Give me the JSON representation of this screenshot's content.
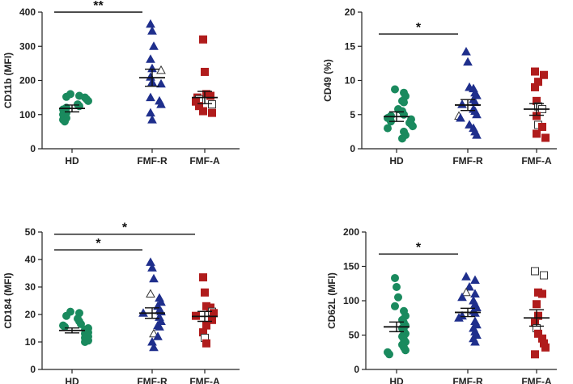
{
  "colors": {
    "HD": "#1a8a5e",
    "FMF-R": "#1f2f8c",
    "FMF-A": "#b01c1c",
    "axis": "#222222"
  },
  "chart_data": [
    {
      "id": "cd11b",
      "type": "scatter",
      "ylabel": "CD11b (MFI)",
      "ylim": [
        0,
        400
      ],
      "yticks": [
        "0",
        "100",
        "200",
        "300",
        "400"
      ],
      "categories": [
        "HD",
        "FMF-R",
        "FMF-A"
      ],
      "markers": {
        "HD": "circle",
        "FMF-R": "triangle",
        "FMF-A": "square"
      },
      "groups": [
        {
          "name": "HD",
          "points": [
            {
              "y": 160
            },
            {
              "y": 155
            },
            {
              "y": 152
            },
            {
              "y": 150
            },
            {
              "y": 145
            },
            {
              "y": 140
            },
            {
              "y": 130
            },
            {
              "y": 125
            },
            {
              "y": 120
            },
            {
              "y": 115
            },
            {
              "y": 110
            },
            {
              "y": 105
            },
            {
              "y": 100
            },
            {
              "y": 95
            },
            {
              "y": 90
            },
            {
              "y": 85
            },
            {
              "y": 80
            }
          ],
          "mean": 118,
          "sem_low": 108,
          "sem_high": 128
        },
        {
          "name": "FMF-R",
          "points": [
            {
              "y": 365
            },
            {
              "y": 345
            },
            {
              "y": 300
            },
            {
              "y": 262
            },
            {
              "y": 235
            },
            {
              "y": 230,
              "open": true
            },
            {
              "y": 210
            },
            {
              "y": 195
            },
            {
              "y": 190
            },
            {
              "y": 150
            },
            {
              "y": 140
            },
            {
              "y": 130
            },
            {
              "y": 105
            },
            {
              "y": 85
            }
          ],
          "mean": 208,
          "sem_low": 183,
          "sem_high": 233
        },
        {
          "name": "FMF-A",
          "points": [
            {
              "y": 320
            },
            {
              "y": 225
            },
            {
              "y": 160
            },
            {
              "y": 155
            },
            {
              "y": 150
            },
            {
              "y": 145,
              "open": true
            },
            {
              "y": 138
            },
            {
              "y": 130,
              "open": true
            },
            {
              "y": 125
            },
            {
              "y": 110
            },
            {
              "y": 105
            }
          ],
          "mean": 150,
          "sem_low": 132,
          "sem_high": 168
        }
      ],
      "significance": [
        {
          "from": "HD",
          "to": "FMF-R",
          "label": "**",
          "y": 400
        }
      ]
    },
    {
      "id": "cd49",
      "type": "scatter",
      "ylabel": "CD49 (%)",
      "ylim": [
        0,
        20
      ],
      "yticks": [
        "0",
        "5",
        "10",
        "15",
        "20"
      ],
      "categories": [
        "HD",
        "FMF-R",
        "FMF-A"
      ],
      "markers": {
        "HD": "circle",
        "FMF-R": "triangle",
        "FMF-A": "square"
      },
      "groups": [
        {
          "name": "HD",
          "points": [
            {
              "y": 8.7
            },
            {
              "y": 8.2
            },
            {
              "y": 7.7
            },
            {
              "y": 7.0
            },
            {
              "y": 6.8
            },
            {
              "y": 5.8
            },
            {
              "y": 5.5
            },
            {
              "y": 5.0
            },
            {
              "y": 4.8
            },
            {
              "y": 4.5
            },
            {
              "y": 4.3
            },
            {
              "y": 4.0
            },
            {
              "y": 3.8
            },
            {
              "y": 3.6
            },
            {
              "y": 3.3
            },
            {
              "y": 3.0
            },
            {
              "y": 2.5
            },
            {
              "y": 2.0
            },
            {
              "y": 1.5
            }
          ],
          "mean": 4.7,
          "sem_low": 4.0,
          "sem_high": 5.4
        },
        {
          "name": "FMF-R",
          "points": [
            {
              "y": 14.2
            },
            {
              "y": 12.7
            },
            {
              "y": 9.0
            },
            {
              "y": 8.8
            },
            {
              "y": 8.2
            },
            {
              "y": 7.8
            },
            {
              "y": 7.2
            },
            {
              "y": 6.8
            },
            {
              "y": 6.5
            },
            {
              "y": 5.8
            },
            {
              "y": 5.5
            },
            {
              "y": 5.0
            },
            {
              "y": 4.8,
              "open": true
            },
            {
              "y": 4.5
            },
            {
              "y": 3.5
            },
            {
              "y": 3.0
            },
            {
              "y": 2.5
            },
            {
              "y": 2.0
            }
          ],
          "mean": 6.4,
          "sem_low": 5.6,
          "sem_high": 7.2
        },
        {
          "name": "FMF-A",
          "points": [
            {
              "y": 11.3
            },
            {
              "y": 10.8
            },
            {
              "y": 9.8
            },
            {
              "y": 9.0
            },
            {
              "y": 7.0
            },
            {
              "y": 6.2,
              "open": true
            },
            {
              "y": 5.8,
              "open": true
            },
            {
              "y": 4.8
            },
            {
              "y": 3.5,
              "open": true
            },
            {
              "y": 3.2
            },
            {
              "y": 2.2
            },
            {
              "y": 1.6
            }
          ],
          "mean": 5.8,
          "sem_low": 4.9,
          "sem_high": 6.6
        }
      ],
      "significance": [
        {
          "from": "HD",
          "to": "FMF-R",
          "label": "*",
          "y": 16.8
        }
      ]
    },
    {
      "id": "cd184",
      "type": "scatter",
      "ylabel": "CD184 (MFI)",
      "ylim": [
        0,
        50
      ],
      "yticks": [
        "0",
        "10",
        "20",
        "30",
        "40",
        "50"
      ],
      "categories": [
        "HD",
        "FMF-R",
        "FMF-A"
      ],
      "markers": {
        "HD": "circle",
        "FMF-R": "triangle",
        "FMF-A": "square"
      },
      "groups": [
        {
          "name": "HD",
          "points": [
            {
              "y": 21.0
            },
            {
              "y": 20.5
            },
            {
              "y": 19.5
            },
            {
              "y": 18.5
            },
            {
              "y": 17.5
            },
            {
              "y": 16.5
            },
            {
              "y": 16.0
            },
            {
              "y": 15.5
            },
            {
              "y": 15.0
            },
            {
              "y": 14.5
            },
            {
              "y": 14.0
            },
            {
              "y": 13.5
            },
            {
              "y": 13.0
            },
            {
              "y": 12.5
            },
            {
              "y": 12.0
            },
            {
              "y": 11.5
            },
            {
              "y": 11.0
            },
            {
              "y": 10.5
            },
            {
              "y": 10.0
            }
          ],
          "mean": 14.2,
          "sem_low": 13.3,
          "sem_high": 15.1
        },
        {
          "name": "FMF-R",
          "points": [
            {
              "y": 39.0
            },
            {
              "y": 37.0
            },
            {
              "y": 33.0
            },
            {
              "y": 27.5,
              "open": true
            },
            {
              "y": 26.0
            },
            {
              "y": 24.5
            },
            {
              "y": 23.0
            },
            {
              "y": 21.5
            },
            {
              "y": 21.0
            },
            {
              "y": 20.5
            },
            {
              "y": 19.0
            },
            {
              "y": 17.5
            },
            {
              "y": 16.0
            },
            {
              "y": 15.5
            },
            {
              "y": 13.0,
              "open": true
            },
            {
              "y": 12.0
            },
            {
              "y": 10.0
            },
            {
              "y": 8.0
            }
          ],
          "mean": 20.5,
          "sem_low": 18.6,
          "sem_high": 22.4
        },
        {
          "name": "FMF-A",
          "points": [
            {
              "y": 33.5
            },
            {
              "y": 28.0
            },
            {
              "y": 23.0
            },
            {
              "y": 22.5
            },
            {
              "y": 21.0,
              "open": true
            },
            {
              "y": 20.5
            },
            {
              "y": 19.5
            },
            {
              "y": 18.0
            },
            {
              "y": 16.0
            },
            {
              "y": 13.5
            },
            {
              "y": 11.5,
              "open": true
            },
            {
              "y": 9.5
            }
          ],
          "mean": 19.3,
          "sem_low": 17.5,
          "sem_high": 21.1
        }
      ],
      "significance": [
        {
          "from": "HD",
          "to": "FMF-R",
          "label": "*",
          "y": 43.5
        },
        {
          "from": "HD",
          "to": "FMF-A",
          "label": "*",
          "y": 49.2
        }
      ]
    },
    {
      "id": "cd62l",
      "type": "scatter",
      "ylabel": "CD62L (MFI)",
      "ylim": [
        0,
        200
      ],
      "yticks": [
        "0",
        "50",
        "100",
        "150",
        "200"
      ],
      "categories": [
        "HD",
        "FMF-R",
        "FMF-A"
      ],
      "markers": {
        "HD": "circle",
        "FMF-R": "triangle",
        "FMF-A": "square"
      },
      "groups": [
        {
          "name": "HD",
          "points": [
            {
              "y": 133
            },
            {
              "y": 120
            },
            {
              "y": 105
            },
            {
              "y": 92
            },
            {
              "y": 85
            },
            {
              "y": 78
            },
            {
              "y": 72
            },
            {
              "y": 68
            },
            {
              "y": 64
            },
            {
              "y": 60
            },
            {
              "y": 56
            },
            {
              "y": 52
            },
            {
              "y": 48
            },
            {
              "y": 44
            },
            {
              "y": 40
            },
            {
              "y": 36
            },
            {
              "y": 32
            },
            {
              "y": 28
            },
            {
              "y": 25
            },
            {
              "y": 22
            }
          ],
          "mean": 62,
          "sem_low": 55,
          "sem_high": 69
        },
        {
          "name": "FMF-R",
          "points": [
            {
              "y": 135
            },
            {
              "y": 130
            },
            {
              "y": 120
            },
            {
              "y": 112,
              "open": true
            },
            {
              "y": 110
            },
            {
              "y": 105
            },
            {
              "y": 100
            },
            {
              "y": 95
            },
            {
              "y": 90
            },
            {
              "y": 85
            },
            {
              "y": 82
            },
            {
              "y": 78
            },
            {
              "y": 75
            },
            {
              "y": 70
            },
            {
              "y": 65
            },
            {
              "y": 60
            },
            {
              "y": 55
            },
            {
              "y": 50
            },
            {
              "y": 45
            },
            {
              "y": 40
            }
          ],
          "mean": 83,
          "sem_low": 77,
          "sem_high": 89
        },
        {
          "name": "FMF-A",
          "points": [
            {
              "y": 143,
              "open": true
            },
            {
              "y": 137,
              "open": true
            },
            {
              "y": 112
            },
            {
              "y": 110
            },
            {
              "y": 95
            },
            {
              "y": 78
            },
            {
              "y": 68
            },
            {
              "y": 60,
              "open": true
            },
            {
              "y": 52
            },
            {
              "y": 45
            },
            {
              "y": 38
            },
            {
              "y": 32
            },
            {
              "y": 22
            }
          ],
          "mean": 75,
          "sem_low": 63,
          "sem_high": 87
        }
      ],
      "significance": [
        {
          "from": "HD",
          "to": "FMF-R",
          "label": "*",
          "y": 168
        }
      ]
    }
  ]
}
